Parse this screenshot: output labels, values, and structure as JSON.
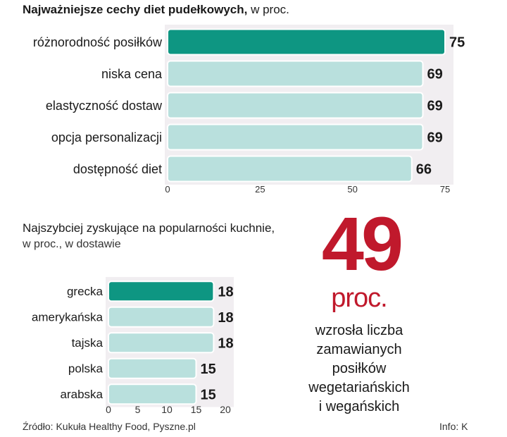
{
  "chart_data": [
    {
      "type": "bar",
      "orientation": "horizontal",
      "title": "Najważniejsze cechy diet pudełkowych,",
      "subtitle": "w proc.",
      "categories": [
        "różnorodność posiłków",
        "niska cena",
        "elastyczność dostaw",
        "opcja personalizacji",
        "dostępność diet"
      ],
      "values": [
        75,
        69,
        69,
        69,
        66
      ],
      "value_labels": [
        "75",
        "69",
        "69",
        "69",
        "66"
      ],
      "xlim": [
        0,
        75
      ],
      "ticks": [
        0,
        25,
        50,
        75
      ],
      "tick_labels": [
        "0",
        "25",
        "50",
        "75"
      ],
      "highlight_color": "#0e9682",
      "bar_color": "#b9e0dd"
    },
    {
      "type": "bar",
      "orientation": "horizontal",
      "title": "Najszybciej zyskujące na popularności kuchnie,",
      "subtitle": "w proc., w dostawie",
      "categories": [
        "grecka",
        "amerykańska",
        "tajska",
        "polska",
        "arabska"
      ],
      "values": [
        18,
        18,
        18,
        15,
        15
      ],
      "value_labels": [
        "18",
        "18",
        "18",
        "15",
        "15"
      ],
      "xlim": [
        0,
        20
      ],
      "ticks": [
        0,
        5,
        10,
        15,
        20
      ],
      "tick_labels": [
        "0",
        "5",
        "10",
        "15",
        "20"
      ],
      "highlight_color": "#0e9682",
      "bar_color": "#b9e0dd"
    }
  ],
  "highlight": {
    "number": "49",
    "unit": "proc.",
    "description": [
      "wzrosła liczba",
      "zamawianych",
      "posiłków",
      "wegetariańskich",
      "i wegańskich"
    ],
    "color": "#c0192c"
  },
  "footer": {
    "source": "Źródło: Kukuła Healthy Food, Pyszne.pl",
    "credit": "Info: K"
  }
}
